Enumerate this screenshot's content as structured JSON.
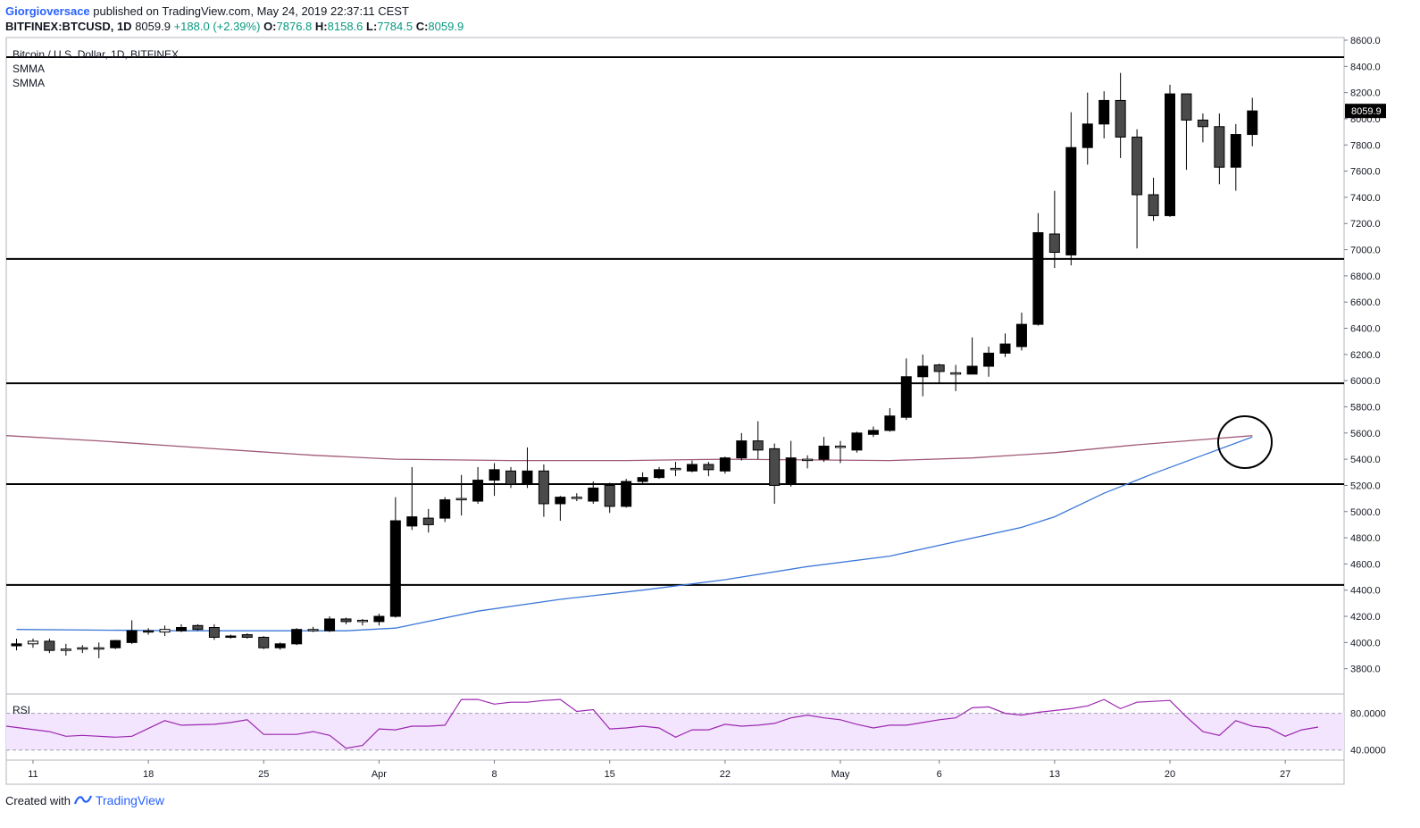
{
  "header": {
    "author": "Giorgioversace",
    "published_text": "published on TradingView.com, May 24, 2019 22:37:11 CEST",
    "symbol": "BITFINEX:BTCUSD, 1D",
    "last": "8059.9",
    "change": "+188.0 (+2.39%)",
    "o_label": "O:",
    "o_value": "7876.8",
    "h_label": "H:",
    "h_value": "8158.6",
    "l_label": "L:",
    "l_value": "7784.5",
    "c_label": "C:",
    "c_value": "8059.9"
  },
  "pane": {
    "title": "Bitcoin / U.S. Dollar, 1D, BITFINEX",
    "indicators": [
      "SMMA",
      "SMMA"
    ],
    "rsi_label": "RSI"
  },
  "footer": {
    "created_with": "Created with",
    "brand": "TradingView"
  },
  "colors": {
    "up_candle": "#ffffff",
    "down_candle": "#000000",
    "gray_candle": "#4a4a4a",
    "smma_blue": "#3c78d8",
    "smma_red": "#a05a78",
    "rsi_line": "#9c27b0",
    "rsi_band": "#f3e5fd",
    "last_price_bg": "#000000"
  },
  "chart_data": {
    "type": "candlestick",
    "y_price_range": [
      3600,
      8600
    ],
    "y_ticks": [
      "8600.0",
      "8400.0",
      "8200.0",
      "8000.0",
      "7800.0",
      "7600.0",
      "7400.0",
      "7200.0",
      "7000.0",
      "6800.0",
      "6600.0",
      "6400.0",
      "6200.0",
      "6000.0",
      "5800.0",
      "5600.0",
      "5400.0",
      "5200.0",
      "5000.0",
      "4800.0",
      "4600.0",
      "4400.0",
      "4200.0",
      "4000.0",
      "3800.0"
    ],
    "y_tick_values": [
      8600,
      8400,
      8200,
      8000,
      7800,
      7600,
      7400,
      7200,
      7000,
      6800,
      6600,
      6400,
      6200,
      6000,
      5800,
      5600,
      5400,
      5200,
      5000,
      4800,
      4600,
      4400,
      4200,
      4000,
      3800
    ],
    "last_price_label": "8059.9",
    "last_price": 8059.9,
    "x_labels": [
      "11",
      "18",
      "25",
      "Apr",
      "8",
      "15",
      "22",
      "May",
      "6",
      "13",
      "20",
      "27"
    ],
    "x_label_days": [
      1,
      8,
      15,
      22,
      29,
      36,
      43,
      50,
      56,
      63,
      70,
      77
    ],
    "days_shown": 80,
    "first_day": "2019-03-10",
    "horizontal_levels": [
      8470,
      6930,
      5980,
      5210,
      4440
    ],
    "candles": [
      {
        "o": 3990,
        "h": 4030,
        "l": 3940,
        "c": 3975,
        "t": "d"
      },
      {
        "o": 3990,
        "h": 4030,
        "l": 3960,
        "c": 4010,
        "t": "u"
      },
      {
        "o": 4010,
        "h": 4030,
        "l": 3920,
        "c": 3940,
        "t": "g"
      },
      {
        "o": 3950,
        "h": 3990,
        "l": 3900,
        "c": 3945,
        "t": "u"
      },
      {
        "o": 3950,
        "h": 3980,
        "l": 3920,
        "c": 3960,
        "t": "u"
      },
      {
        "o": 3960,
        "h": 4000,
        "l": 3880,
        "c": 3950,
        "t": "u"
      },
      {
        "o": 3960,
        "h": 4020,
        "l": 3950,
        "c": 4015,
        "t": "d"
      },
      {
        "o": 4000,
        "h": 4170,
        "l": 3990,
        "c": 4090,
        "t": "d"
      },
      {
        "o": 4090,
        "h": 4110,
        "l": 4060,
        "c": 4080,
        "t": "g"
      },
      {
        "o": 4080,
        "h": 4130,
        "l": 4050,
        "c": 4100,
        "t": "u"
      },
      {
        "o": 4090,
        "h": 4140,
        "l": 4080,
        "c": 4115,
        "t": "d"
      },
      {
        "o": 4130,
        "h": 4140,
        "l": 4090,
        "c": 4100,
        "t": "g"
      },
      {
        "o": 4115,
        "h": 4140,
        "l": 4020,
        "c": 4040,
        "t": "g"
      },
      {
        "o": 4050,
        "h": 4060,
        "l": 4030,
        "c": 4045,
        "t": "d"
      },
      {
        "o": 4040,
        "h": 4070,
        "l": 4030,
        "c": 4060,
        "t": "g"
      },
      {
        "o": 4040,
        "h": 4050,
        "l": 3950,
        "c": 3960,
        "t": "g"
      },
      {
        "o": 3960,
        "h": 4000,
        "l": 3945,
        "c": 3990,
        "t": "d"
      },
      {
        "o": 3990,
        "h": 4110,
        "l": 3980,
        "c": 4100,
        "t": "d"
      },
      {
        "o": 4090,
        "h": 4120,
        "l": 4080,
        "c": 4100,
        "t": "u"
      },
      {
        "o": 4090,
        "h": 4200,
        "l": 4080,
        "c": 4180,
        "t": "d"
      },
      {
        "o": 4180,
        "h": 4190,
        "l": 4140,
        "c": 4160,
        "t": "g"
      },
      {
        "o": 4160,
        "h": 4180,
        "l": 4130,
        "c": 4170,
        "t": "u"
      },
      {
        "o": 4160,
        "h": 4220,
        "l": 4130,
        "c": 4200,
        "t": "d"
      },
      {
        "o": 4200,
        "h": 5110,
        "l": 4190,
        "c": 4930,
        "t": "d"
      },
      {
        "o": 4890,
        "h": 5340,
        "l": 4860,
        "c": 4960,
        "t": "d"
      },
      {
        "o": 4950,
        "h": 5020,
        "l": 4840,
        "c": 4900,
        "t": "g"
      },
      {
        "o": 4950,
        "h": 5110,
        "l": 4920,
        "c": 5090,
        "t": "d"
      },
      {
        "o": 5090,
        "h": 5280,
        "l": 4970,
        "c": 5100,
        "t": "u"
      },
      {
        "o": 5080,
        "h": 5340,
        "l": 5060,
        "c": 5240,
        "t": "d"
      },
      {
        "o": 5240,
        "h": 5370,
        "l": 5120,
        "c": 5320,
        "t": "d"
      },
      {
        "o": 5310,
        "h": 5340,
        "l": 5180,
        "c": 5210,
        "t": "g"
      },
      {
        "o": 5210,
        "h": 5490,
        "l": 5180,
        "c": 5310,
        "t": "d"
      },
      {
        "o": 5310,
        "h": 5360,
        "l": 4960,
        "c": 5060,
        "t": "g"
      },
      {
        "o": 5060,
        "h": 5120,
        "l": 4930,
        "c": 5110,
        "t": "d"
      },
      {
        "o": 5100,
        "h": 5140,
        "l": 5080,
        "c": 5110,
        "t": "u"
      },
      {
        "o": 5080,
        "h": 5230,
        "l": 5060,
        "c": 5180,
        "t": "d"
      },
      {
        "o": 5200,
        "h": 5220,
        "l": 4990,
        "c": 5040,
        "t": "g"
      },
      {
        "o": 5040,
        "h": 5250,
        "l": 5030,
        "c": 5230,
        "t": "d"
      },
      {
        "o": 5230,
        "h": 5300,
        "l": 5210,
        "c": 5260,
        "t": "d"
      },
      {
        "o": 5260,
        "h": 5340,
        "l": 5250,
        "c": 5320,
        "t": "d"
      },
      {
        "o": 5320,
        "h": 5380,
        "l": 5270,
        "c": 5330,
        "t": "u"
      },
      {
        "o": 5310,
        "h": 5390,
        "l": 5300,
        "c": 5360,
        "t": "d"
      },
      {
        "o": 5360,
        "h": 5380,
        "l": 5270,
        "c": 5320,
        "t": "g"
      },
      {
        "o": 5310,
        "h": 5420,
        "l": 5290,
        "c": 5410,
        "t": "d"
      },
      {
        "o": 5410,
        "h": 5600,
        "l": 5390,
        "c": 5540,
        "t": "d"
      },
      {
        "o": 5540,
        "h": 5690,
        "l": 5400,
        "c": 5470,
        "t": "g"
      },
      {
        "o": 5480,
        "h": 5520,
        "l": 5060,
        "c": 5200,
        "t": "g"
      },
      {
        "o": 5210,
        "h": 5540,
        "l": 5190,
        "c": 5410,
        "t": "d"
      },
      {
        "o": 5390,
        "h": 5430,
        "l": 5330,
        "c": 5400,
        "t": "u"
      },
      {
        "o": 5400,
        "h": 5570,
        "l": 5380,
        "c": 5500,
        "t": "d"
      },
      {
        "o": 5490,
        "h": 5540,
        "l": 5370,
        "c": 5500,
        "t": "u"
      },
      {
        "o": 5470,
        "h": 5610,
        "l": 5450,
        "c": 5600,
        "t": "d"
      },
      {
        "o": 5590,
        "h": 5650,
        "l": 5570,
        "c": 5620,
        "t": "d"
      },
      {
        "o": 5620,
        "h": 5790,
        "l": 5610,
        "c": 5730,
        "t": "d"
      },
      {
        "o": 5720,
        "h": 6170,
        "l": 5700,
        "c": 6030,
        "t": "d"
      },
      {
        "o": 6030,
        "h": 6200,
        "l": 5880,
        "c": 6110,
        "t": "d"
      },
      {
        "o": 6120,
        "h": 6130,
        "l": 5980,
        "c": 6070,
        "t": "g"
      },
      {
        "o": 6050,
        "h": 6120,
        "l": 5920,
        "c": 6060,
        "t": "u"
      },
      {
        "o": 6050,
        "h": 6330,
        "l": 6050,
        "c": 6110,
        "t": "d"
      },
      {
        "o": 6110,
        "h": 6260,
        "l": 6030,
        "c": 6210,
        "t": "d"
      },
      {
        "o": 6210,
        "h": 6360,
        "l": 6180,
        "c": 6280,
        "t": "d"
      },
      {
        "o": 6260,
        "h": 6520,
        "l": 6230,
        "c": 6430,
        "t": "d"
      },
      {
        "o": 6430,
        "h": 7280,
        "l": 6420,
        "c": 7130,
        "t": "d"
      },
      {
        "o": 7120,
        "h": 7450,
        "l": 6860,
        "c": 6980,
        "t": "g"
      },
      {
        "o": 6960,
        "h": 8050,
        "l": 6880,
        "c": 7780,
        "t": "d"
      },
      {
        "o": 7780,
        "h": 8200,
        "l": 7650,
        "c": 7960,
        "t": "d"
      },
      {
        "o": 7960,
        "h": 8210,
        "l": 7850,
        "c": 8140,
        "t": "d"
      },
      {
        "o": 8140,
        "h": 8350,
        "l": 7700,
        "c": 7860,
        "t": "g"
      },
      {
        "o": 7860,
        "h": 7920,
        "l": 7010,
        "c": 7420,
        "t": "g"
      },
      {
        "o": 7420,
        "h": 7550,
        "l": 7220,
        "c": 7260,
        "t": "g"
      },
      {
        "o": 7260,
        "h": 8260,
        "l": 7250,
        "c": 8190,
        "t": "d"
      },
      {
        "o": 8190,
        "h": 8190,
        "l": 7610,
        "c": 7990,
        "t": "g"
      },
      {
        "o": 7990,
        "h": 8040,
        "l": 7820,
        "c": 7940,
        "t": "g"
      },
      {
        "o": 7940,
        "h": 8040,
        "l": 7500,
        "c": 7630,
        "t": "g"
      },
      {
        "o": 7630,
        "h": 7960,
        "l": 7450,
        "c": 7880,
        "t": "d"
      },
      {
        "o": 7880,
        "h": 8160,
        "l": 7790,
        "c": 8060,
        "t": "d"
      }
    ],
    "smma_blue": [
      [
        0,
        4100
      ],
      [
        10,
        4090
      ],
      [
        20,
        4090
      ],
      [
        23,
        4110
      ],
      [
        28,
        4240
      ],
      [
        33,
        4330
      ],
      [
        38,
        4400
      ],
      [
        43,
        4480
      ],
      [
        48,
        4580
      ],
      [
        53,
        4660
      ],
      [
        57,
        4770
      ],
      [
        61,
        4880
      ],
      [
        63,
        4960
      ],
      [
        66,
        5140
      ],
      [
        69,
        5290
      ],
      [
        72,
        5430
      ],
      [
        75,
        5570
      ]
    ],
    "smma_red": [
      [
        -1,
        5580
      ],
      [
        5,
        5540
      ],
      [
        12,
        5480
      ],
      [
        18,
        5430
      ],
      [
        23,
        5400
      ],
      [
        30,
        5390
      ],
      [
        37,
        5390
      ],
      [
        43,
        5400
      ],
      [
        48,
        5395
      ],
      [
        53,
        5390
      ],
      [
        58,
        5410
      ],
      [
        63,
        5450
      ],
      [
        68,
        5510
      ],
      [
        72,
        5550
      ],
      [
        75,
        5580
      ]
    ],
    "rsi_levels": [
      "80.0000",
      "40.0000"
    ],
    "rsi_level_values": [
      80,
      40
    ],
    "rsi_range": [
      30,
      100
    ],
    "rsi": [
      [
        -1,
        66
      ],
      [
        2,
        60
      ],
      [
        3,
        55
      ],
      [
        4,
        56
      ],
      [
        6,
        54
      ],
      [
        7,
        55
      ],
      [
        9,
        72
      ],
      [
        10,
        67
      ],
      [
        12,
        68
      ],
      [
        13,
        70
      ],
      [
        14,
        73
      ],
      [
        15,
        57
      ],
      [
        17,
        57
      ],
      [
        18,
        60
      ],
      [
        19,
        56
      ],
      [
        20,
        42
      ],
      [
        21,
        45
      ],
      [
        22,
        63
      ],
      [
        23,
        62
      ],
      [
        24,
        66
      ],
      [
        25,
        66
      ],
      [
        26,
        67
      ],
      [
        27,
        95
      ],
      [
        28,
        95
      ],
      [
        29,
        90
      ],
      [
        30,
        92
      ],
      [
        31,
        92
      ],
      [
        32,
        94
      ],
      [
        33,
        95
      ],
      [
        34,
        82
      ],
      [
        35,
        84
      ],
      [
        36,
        63
      ],
      [
        37,
        64
      ],
      [
        38,
        66
      ],
      [
        39,
        64
      ],
      [
        40,
        54
      ],
      [
        41,
        62
      ],
      [
        42,
        62
      ],
      [
        43,
        68
      ],
      [
        44,
        66
      ],
      [
        45,
        67
      ],
      [
        46,
        69
      ],
      [
        47,
        75
      ],
      [
        48,
        78
      ],
      [
        49,
        75
      ],
      [
        50,
        73
      ],
      [
        51,
        68
      ],
      [
        52,
        64
      ],
      [
        53,
        67
      ],
      [
        54,
        67
      ],
      [
        55,
        70
      ],
      [
        56,
        73
      ],
      [
        57,
        75
      ],
      [
        58,
        86
      ],
      [
        59,
        87
      ],
      [
        60,
        80
      ],
      [
        61,
        78
      ],
      [
        62,
        81
      ],
      [
        63,
        83
      ],
      [
        64,
        85
      ],
      [
        65,
        88
      ],
      [
        66,
        95
      ],
      [
        67,
        85
      ],
      [
        68,
        92
      ],
      [
        69,
        93
      ],
      [
        70,
        94
      ],
      [
        71,
        76
      ],
      [
        72,
        60
      ],
      [
        73,
        56
      ],
      [
        74,
        72
      ],
      [
        75,
        66
      ],
      [
        76,
        64
      ],
      [
        77,
        55
      ],
      [
        78,
        62
      ],
      [
        79,
        65
      ]
    ]
  }
}
